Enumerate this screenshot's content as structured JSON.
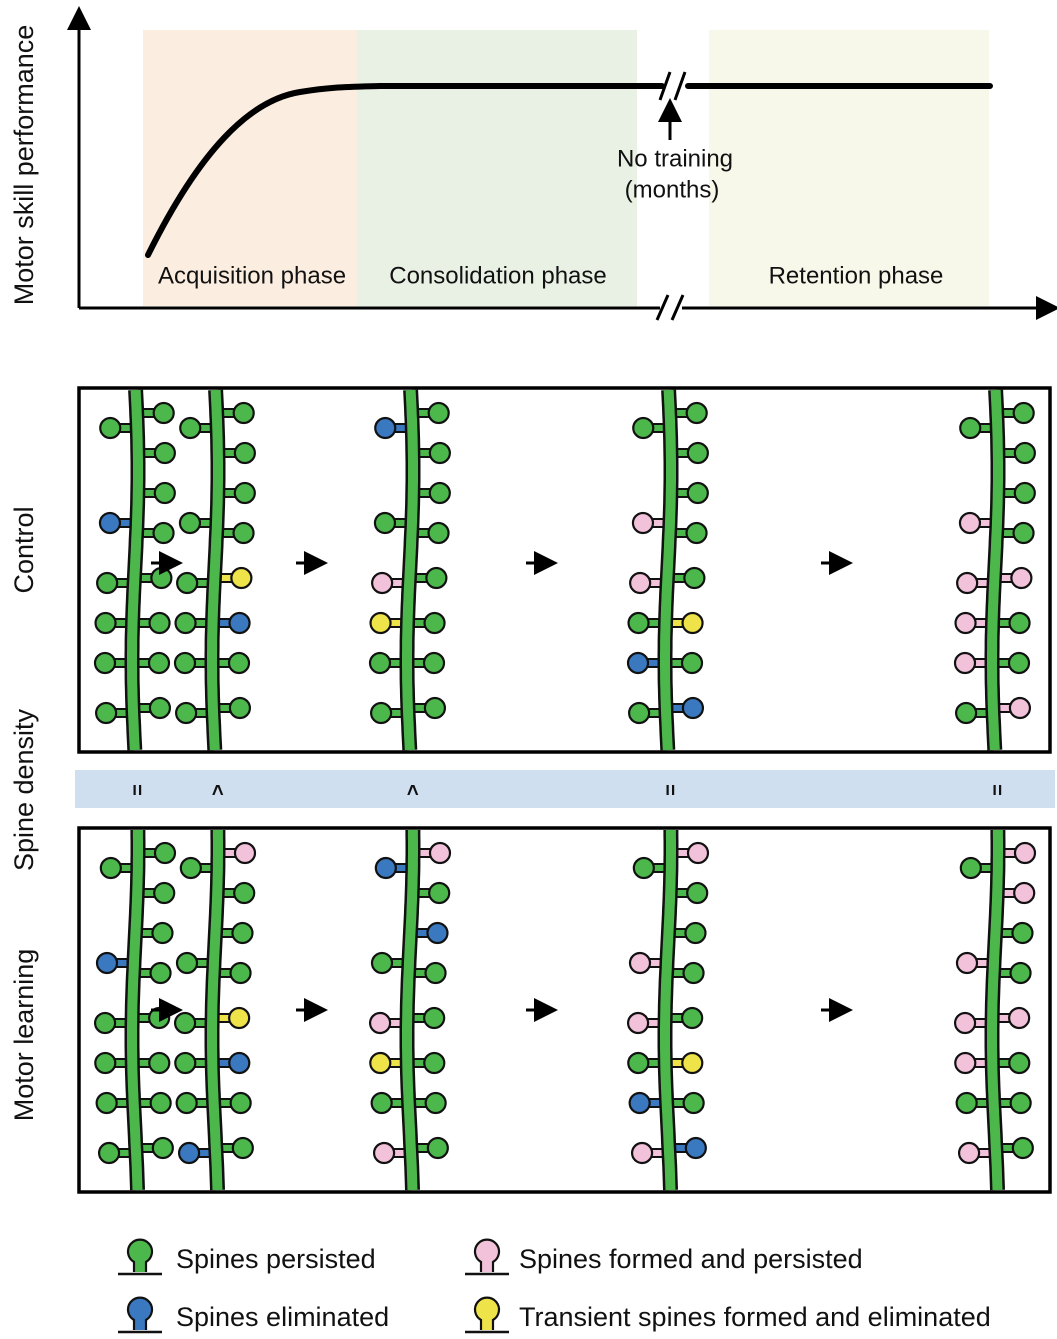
{
  "graph": {
    "y_axis_label": "Motor skill performance",
    "phases": [
      "Acquisition phase",
      "Consolidation phase",
      "Retention phase"
    ],
    "annotation": [
      "No training",
      "(months)"
    ]
  },
  "panels": {
    "side_labels": [
      "Control",
      "Spine density",
      "Motor learning"
    ],
    "density_comparisons": [
      "=",
      ">",
      ">",
      "=",
      "="
    ]
  },
  "legend": [
    "Spines persisted",
    "Spines eliminated",
    "Spines formed and persisted",
    "Transient spines formed and eliminated"
  ]
}
